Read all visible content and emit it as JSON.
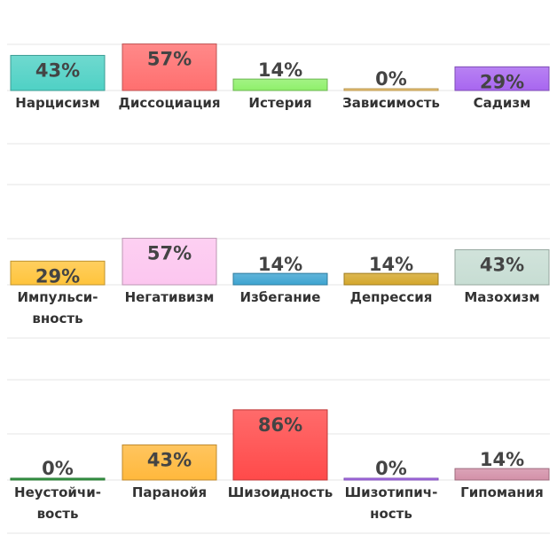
{
  "chart_data": {
    "type": "bar",
    "ylim": [
      0,
      100
    ],
    "grid": true,
    "panels": [
      {
        "bars": [
          {
            "category": [
              "Нарцисизм"
            ],
            "value": 43,
            "label": "43%",
            "color": "#4fd1c5"
          },
          {
            "category": [
              "Диссоциация"
            ],
            "value": 57,
            "label": "57%",
            "color": "#ff6f6f"
          },
          {
            "category": [
              "Истерия"
            ],
            "value": 14,
            "label": "14%",
            "color": "#8ff06a"
          },
          {
            "category": [
              "Зависимость"
            ],
            "value": 0,
            "label": "0%",
            "color": "#f3c66b"
          },
          {
            "category": [
              "Садизм"
            ],
            "value": 29,
            "label": "29%",
            "color": "#a866f0"
          }
        ]
      },
      {
        "bars": [
          {
            "category": [
              "Импульси-",
              "вность"
            ],
            "value": 29,
            "label": "29%",
            "color": "#ffc43c"
          },
          {
            "category": [
              "Негативизм"
            ],
            "value": 57,
            "label": "57%",
            "color": "#fcc6ef"
          },
          {
            "category": [
              "Избегание"
            ],
            "value": 14,
            "label": "14%",
            "color": "#3da4d1"
          },
          {
            "category": [
              "Депрессия"
            ],
            "value": 14,
            "label": "14%",
            "color": "#d4a72c"
          },
          {
            "category": [
              "Мазохизм"
            ],
            "value": 43,
            "label": "43%",
            "color": "#c7ddd3"
          }
        ]
      },
      {
        "bars": [
          {
            "category": [
              "Неустойчи-",
              "вость"
            ],
            "value": 0,
            "label": "0%",
            "color": "#2c9a3c"
          },
          {
            "category": [
              "Паранойя"
            ],
            "value": 43,
            "label": "43%",
            "color": "#ffb83c"
          },
          {
            "category": [
              "Шизоидность"
            ],
            "value": 86,
            "label": "86%",
            "color": "#ff4a4a"
          },
          {
            "category": [
              "Шизотипич-",
              "ность"
            ],
            "value": 0,
            "label": "0%",
            "color": "#a866f0"
          },
          {
            "category": [
              "Гипомания"
            ],
            "value": 14,
            "label": "14%",
            "color": "#d390a8"
          }
        ]
      }
    ]
  }
}
